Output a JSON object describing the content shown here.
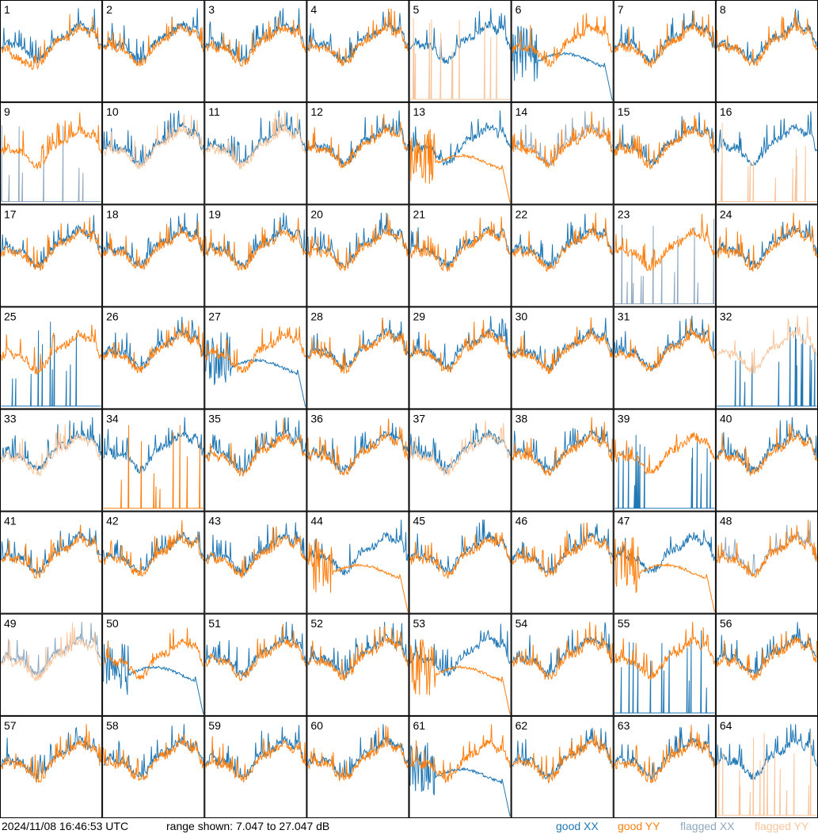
{
  "chart_data": {
    "type": "line",
    "title": "",
    "xlabel": "",
    "ylabel": "",
    "grid": {
      "rows": 8,
      "cols": 8
    },
    "y_range_db": [
      7.047,
      27.047
    ],
    "legend_position": "bottom-right",
    "series_legend": [
      {
        "name": "good XX",
        "word": "good",
        "pol": "XX",
        "color": "#1f77b4"
      },
      {
        "name": "good YY",
        "word": "good",
        "pol": "YY",
        "color": "#ff7f0e"
      },
      {
        "name": "flagged XX",
        "word": "flagged",
        "pol": "XX",
        "color": "#8fa8bf"
      },
      {
        "name": "flagged YY",
        "word": "flagged",
        "pol": "YY",
        "color": "#f9c59c"
      }
    ],
    "panels": [
      {
        "id": "1",
        "xx": "good",
        "yy": "good",
        "xx_mode": "normal",
        "yy_mode": "normal",
        "yy_low": true
      },
      {
        "id": "2",
        "xx": "good",
        "yy": "good",
        "xx_mode": "normal",
        "yy_mode": "normal"
      },
      {
        "id": "3",
        "xx": "good",
        "yy": "good",
        "xx_mode": "normal",
        "yy_mode": "normal"
      },
      {
        "id": "4",
        "xx": "good",
        "yy": "good",
        "xx_mode": "normal",
        "yy_mode": "normal"
      },
      {
        "id": "5",
        "xx": "good",
        "yy": "flagged",
        "xx_mode": "normal",
        "yy_mode": "spikes"
      },
      {
        "id": "6",
        "xx": "good",
        "yy": "good",
        "xx_mode": "decay",
        "yy_mode": "normal"
      },
      {
        "id": "7",
        "xx": "good",
        "yy": "good",
        "xx_mode": "normal",
        "yy_mode": "normal"
      },
      {
        "id": "8",
        "xx": "good",
        "yy": "good",
        "xx_mode": "normal",
        "yy_mode": "normal"
      },
      {
        "id": "9",
        "xx": "flagged",
        "yy": "good",
        "xx_mode": "spikes",
        "yy_mode": "normal"
      },
      {
        "id": "10",
        "xx": "good",
        "yy": "flagged",
        "xx_mode": "normal",
        "yy_mode": "normal"
      },
      {
        "id": "11",
        "xx": "good",
        "yy": "flagged",
        "xx_mode": "normal",
        "yy_mode": "normal"
      },
      {
        "id": "12",
        "xx": "good",
        "yy": "good",
        "xx_mode": "normal",
        "yy_mode": "normal"
      },
      {
        "id": "13",
        "xx": "good",
        "yy": "good",
        "xx_mode": "normal",
        "yy_mode": "decay"
      },
      {
        "id": "14",
        "xx": "flagged",
        "yy": "good",
        "xx_mode": "normal",
        "yy_mode": "normal"
      },
      {
        "id": "15",
        "xx": "good",
        "yy": "good",
        "xx_mode": "normal",
        "yy_mode": "normal"
      },
      {
        "id": "16",
        "xx": "good",
        "yy": "flagged",
        "xx_mode": "normal",
        "yy_mode": "spikes"
      },
      {
        "id": "17",
        "xx": "good",
        "yy": "good",
        "xx_mode": "normal",
        "yy_mode": "normal"
      },
      {
        "id": "18",
        "xx": "good",
        "yy": "good",
        "xx_mode": "normal",
        "yy_mode": "normal"
      },
      {
        "id": "19",
        "xx": "good",
        "yy": "good",
        "xx_mode": "normal",
        "yy_mode": "normal"
      },
      {
        "id": "20",
        "xx": "good",
        "yy": "good",
        "xx_mode": "normal",
        "yy_mode": "normal"
      },
      {
        "id": "21",
        "xx": "good",
        "yy": "good",
        "xx_mode": "normal",
        "yy_mode": "normal"
      },
      {
        "id": "22",
        "xx": "good",
        "yy": "good",
        "xx_mode": "normal",
        "yy_mode": "normal"
      },
      {
        "id": "23",
        "xx": "flagged",
        "yy": "good",
        "xx_mode": "spikes",
        "yy_mode": "normal"
      },
      {
        "id": "24",
        "xx": "good",
        "yy": "good",
        "xx_mode": "normal",
        "yy_mode": "normal"
      },
      {
        "id": "25",
        "xx": "good",
        "yy": "good",
        "xx_mode": "spikes",
        "yy_mode": "normal"
      },
      {
        "id": "26",
        "xx": "good",
        "yy": "good",
        "xx_mode": "normal",
        "yy_mode": "normal"
      },
      {
        "id": "27",
        "xx": "good",
        "yy": "good",
        "xx_mode": "decay",
        "yy_mode": "normal"
      },
      {
        "id": "28",
        "xx": "good",
        "yy": "good",
        "xx_mode": "normal",
        "yy_mode": "normal"
      },
      {
        "id": "29",
        "xx": "good",
        "yy": "good",
        "xx_mode": "normal",
        "yy_mode": "normal"
      },
      {
        "id": "30",
        "xx": "good",
        "yy": "good",
        "xx_mode": "normal",
        "yy_mode": "normal"
      },
      {
        "id": "31",
        "xx": "good",
        "yy": "good",
        "xx_mode": "normal",
        "yy_mode": "normal"
      },
      {
        "id": "32",
        "xx": "good",
        "yy": "flagged",
        "xx_mode": "spikes",
        "yy_mode": "normal"
      },
      {
        "id": "33",
        "xx": "good",
        "yy": "flagged",
        "xx_mode": "normal",
        "yy_mode": "normal"
      },
      {
        "id": "34",
        "xx": "good",
        "yy": "good",
        "xx_mode": "normal",
        "yy_mode": "spikes"
      },
      {
        "id": "35",
        "xx": "good",
        "yy": "good",
        "xx_mode": "normal",
        "yy_mode": "normal"
      },
      {
        "id": "36",
        "xx": "good",
        "yy": "good",
        "xx_mode": "normal",
        "yy_mode": "normal"
      },
      {
        "id": "37",
        "xx": "good",
        "yy": "flagged",
        "xx_mode": "normal",
        "yy_mode": "normal"
      },
      {
        "id": "38",
        "xx": "good",
        "yy": "good",
        "xx_mode": "normal",
        "yy_mode": "normal"
      },
      {
        "id": "39",
        "xx": "good",
        "yy": "good",
        "xx_mode": "spikes",
        "yy_mode": "normal"
      },
      {
        "id": "40",
        "xx": "good",
        "yy": "good",
        "xx_mode": "normal",
        "yy_mode": "normal"
      },
      {
        "id": "41",
        "xx": "good",
        "yy": "good",
        "xx_mode": "normal",
        "yy_mode": "normal"
      },
      {
        "id": "42",
        "xx": "good",
        "yy": "good",
        "xx_mode": "normal",
        "yy_mode": "normal"
      },
      {
        "id": "43",
        "xx": "good",
        "yy": "good",
        "xx_mode": "normal",
        "yy_mode": "normal"
      },
      {
        "id": "44",
        "xx": "good",
        "yy": "good",
        "xx_mode": "normal",
        "yy_mode": "decay"
      },
      {
        "id": "45",
        "xx": "good",
        "yy": "good",
        "xx_mode": "normal",
        "yy_mode": "normal"
      },
      {
        "id": "46",
        "xx": "good",
        "yy": "good",
        "xx_mode": "normal",
        "yy_mode": "normal"
      },
      {
        "id": "47",
        "xx": "good",
        "yy": "good",
        "xx_mode": "normal",
        "yy_mode": "decay"
      },
      {
        "id": "48",
        "xx": "flagged",
        "yy": "good",
        "xx_mode": "normal",
        "yy_mode": "normal"
      },
      {
        "id": "49",
        "xx": "flagged",
        "yy": "flagged",
        "xx_mode": "normal",
        "yy_mode": "normal"
      },
      {
        "id": "50",
        "xx": "good",
        "yy": "good",
        "xx_mode": "decay",
        "yy_mode": "normal"
      },
      {
        "id": "51",
        "xx": "good",
        "yy": "good",
        "xx_mode": "normal",
        "yy_mode": "normal"
      },
      {
        "id": "52",
        "xx": "good",
        "yy": "good",
        "xx_mode": "normal",
        "yy_mode": "normal"
      },
      {
        "id": "53",
        "xx": "good",
        "yy": "good",
        "xx_mode": "normal",
        "yy_mode": "decay"
      },
      {
        "id": "54",
        "xx": "good",
        "yy": "good",
        "xx_mode": "normal",
        "yy_mode": "normal"
      },
      {
        "id": "55",
        "xx": "good",
        "yy": "good",
        "xx_mode": "spikes",
        "yy_mode": "normal"
      },
      {
        "id": "56",
        "xx": "good",
        "yy": "good",
        "xx_mode": "normal",
        "yy_mode": "normal"
      },
      {
        "id": "57",
        "xx": "good",
        "yy": "good",
        "xx_mode": "normal",
        "yy_mode": "normal"
      },
      {
        "id": "58",
        "xx": "good",
        "yy": "good",
        "xx_mode": "normal",
        "yy_mode": "normal"
      },
      {
        "id": "59",
        "xx": "good",
        "yy": "good",
        "xx_mode": "normal",
        "yy_mode": "normal"
      },
      {
        "id": "60",
        "xx": "good",
        "yy": "good",
        "xx_mode": "normal",
        "yy_mode": "normal"
      },
      {
        "id": "61",
        "xx": "good",
        "yy": "good",
        "xx_mode": "decay",
        "yy_mode": "normal"
      },
      {
        "id": "62",
        "xx": "good",
        "yy": "good",
        "xx_mode": "normal",
        "yy_mode": "normal"
      },
      {
        "id": "63",
        "xx": "good",
        "yy": "good",
        "xx_mode": "normal",
        "yy_mode": "normal"
      },
      {
        "id": "64",
        "xx": "good",
        "yy": "flagged",
        "xx_mode": "normal",
        "yy_mode": "spikes"
      }
    ]
  },
  "footer": {
    "timestamp": "2024/11/08 16:46:53 UTC",
    "range_text": "range shown: 7.047 to 27.047 dB"
  }
}
